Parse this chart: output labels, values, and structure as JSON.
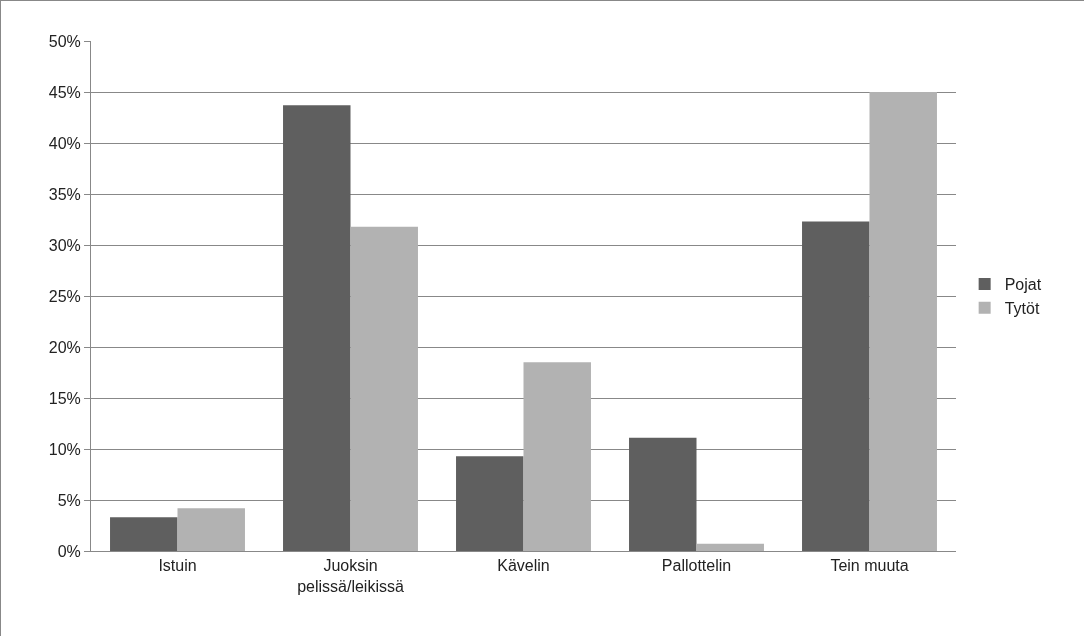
{
  "chart_data": {
    "type": "bar",
    "categories": [
      "Istuin",
      "Juoksin pelissä/leikissä",
      "Kävelin",
      "Pallottelin",
      "Tein muuta"
    ],
    "series": [
      {
        "name": "Pojat",
        "color": "#5f5f5f",
        "values": [
          3.3,
          43.7,
          9.3,
          11.1,
          32.3
        ]
      },
      {
        "name": "Tytöt",
        "color": "#b2b2b2",
        "values": [
          4.2,
          31.8,
          18.5,
          0.7,
          45.0
        ]
      }
    ],
    "ylim": [
      0,
      50
    ],
    "yticks": [
      {
        "value": 0,
        "label": "0%"
      },
      {
        "value": 5,
        "label": "5%"
      },
      {
        "value": 10,
        "label": "10%"
      },
      {
        "value": 15,
        "label": "15%"
      },
      {
        "value": 20,
        "label": "20%"
      },
      {
        "value": 25,
        "label": "25%"
      },
      {
        "value": 30,
        "label": "30%"
      },
      {
        "value": 35,
        "label": "35%"
      },
      {
        "value": 40,
        "label": "40%"
      },
      {
        "value": 45,
        "label": "45%"
      },
      {
        "value": 50,
        "label": "50%"
      }
    ],
    "grid": "y",
    "legend": "right"
  }
}
